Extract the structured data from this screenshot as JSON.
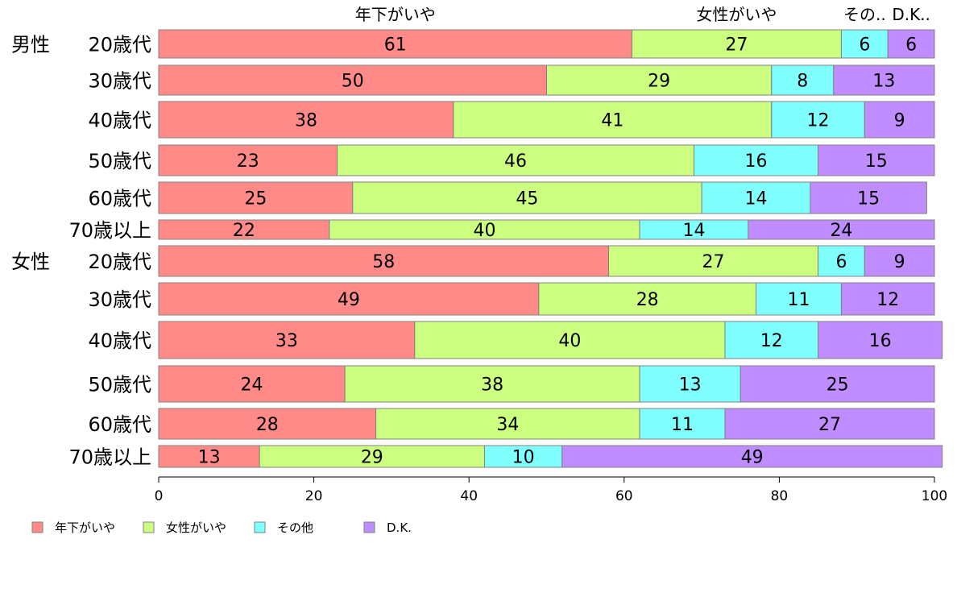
{
  "chart_data": {
    "type": "bar",
    "orientation": "horizontal",
    "stacked": true,
    "xlim": [
      0,
      100
    ],
    "xticks": [
      "0",
      "20",
      "40",
      "60",
      "80",
      "100"
    ],
    "groups": [
      "男性",
      "女性"
    ],
    "categories": [
      "20歳代",
      "30歳代",
      "40歳代",
      "50歳代",
      "60歳代",
      "70歳以上",
      "20歳代",
      "30歳代",
      "40歳代",
      "50歳代",
      "60歳代",
      "70歳以上"
    ],
    "row_group": [
      "男性",
      "男性",
      "男性",
      "男性",
      "男性",
      "男性",
      "女性",
      "女性",
      "女性",
      "女性",
      "女性",
      "女性"
    ],
    "row_weight": [
      1,
      1,
      1,
      1,
      1,
      0.68,
      1,
      1,
      1,
      1,
      1,
      0.68
    ],
    "series": [
      {
        "name": "年下がいや",
        "color": "#ff8a87",
        "values": [
          61,
          50,
          38,
          23,
          25,
          22,
          58,
          49,
          33,
          24,
          28,
          13
        ]
      },
      {
        "name": "女性がいや",
        "color": "#ccff7f",
        "values": [
          27,
          29,
          41,
          46,
          45,
          40,
          27,
          28,
          40,
          38,
          34,
          29
        ]
      },
      {
        "name": "その他",
        "color": "#80ffff",
        "values": [
          6,
          8,
          12,
          16,
          14,
          14,
          6,
          11,
          12,
          13,
          11,
          10
        ]
      },
      {
        "name": "D.K.",
        "color": "#bf8dff",
        "values": [
          6,
          13,
          9,
          15,
          15,
          24,
          9,
          12,
          16,
          25,
          27,
          49
        ]
      }
    ],
    "top_labels": [
      "年下がいや",
      "女性がいや",
      "その..",
      "D.K.."
    ],
    "legend": [
      "年下がいや",
      "女性がいや",
      "その他",
      "D.K."
    ],
    "legend_position": "bottom-left",
    "grid": false
  }
}
